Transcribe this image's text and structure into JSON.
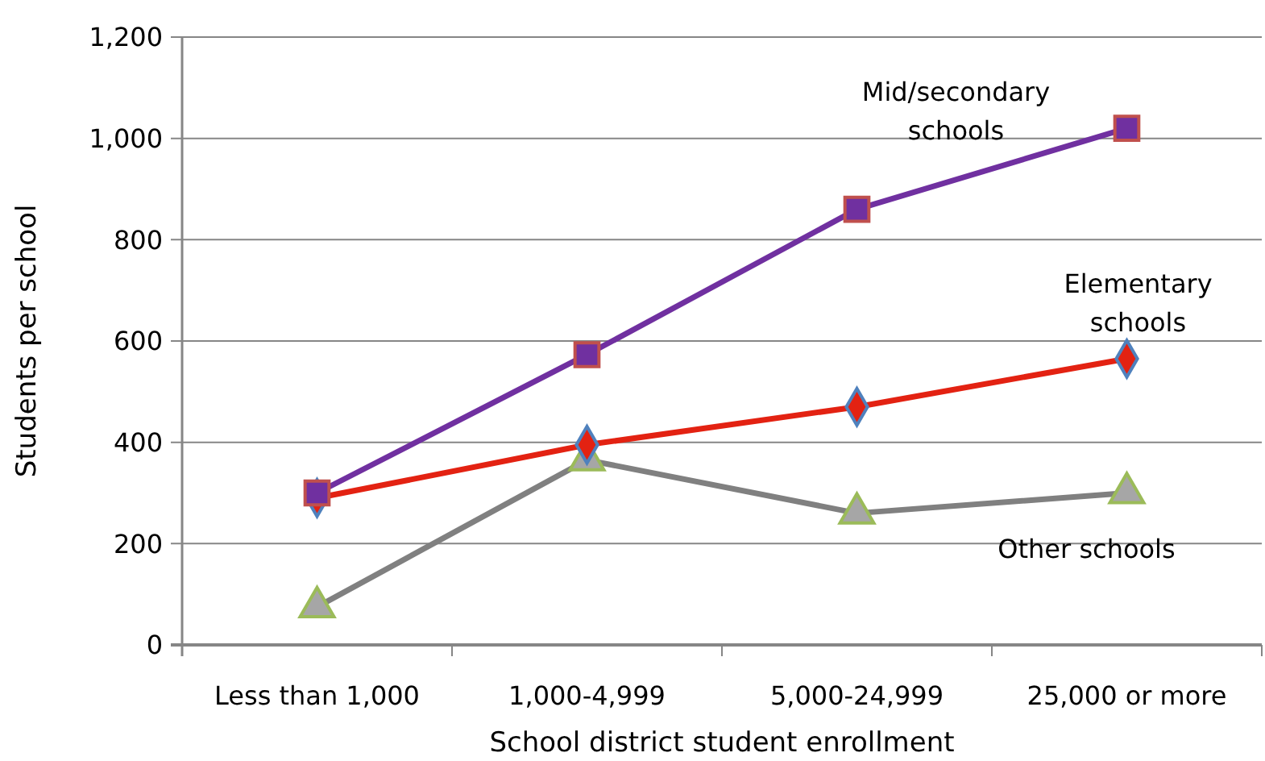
{
  "chart_data": {
    "type": "line",
    "xlabel": "School district student enrollment",
    "ylabel": "Students per school",
    "categories": [
      "Less than 1,000",
      "1,000-4,999",
      "5,000-24,999",
      "25,000 or more"
    ],
    "series": [
      {
        "name": "Mid/secondary schools",
        "color": "#7030a0",
        "marker": "square",
        "values": [
          300,
          573,
          860,
          1020
        ]
      },
      {
        "name": "Elementary schools",
        "color": "#e32212",
        "marker": "diamond",
        "values": [
          290,
          395,
          470,
          565
        ]
      },
      {
        "name": "Other schools",
        "color": "#808080",
        "marker": "triangle",
        "values": [
          75,
          365,
          260,
          300
        ]
      }
    ],
    "ylim": [
      0,
      1200
    ],
    "yticks": [
      {
        "value": 0,
        "label": "0"
      },
      {
        "value": 200,
        "label": "200"
      },
      {
        "value": 400,
        "label": "400"
      },
      {
        "value": 600,
        "label": "600"
      },
      {
        "value": 800,
        "label": "800"
      },
      {
        "value": 1000,
        "label": "1,000"
      },
      {
        "value": 1200,
        "label": "1,200"
      }
    ],
    "grid": "y"
  }
}
